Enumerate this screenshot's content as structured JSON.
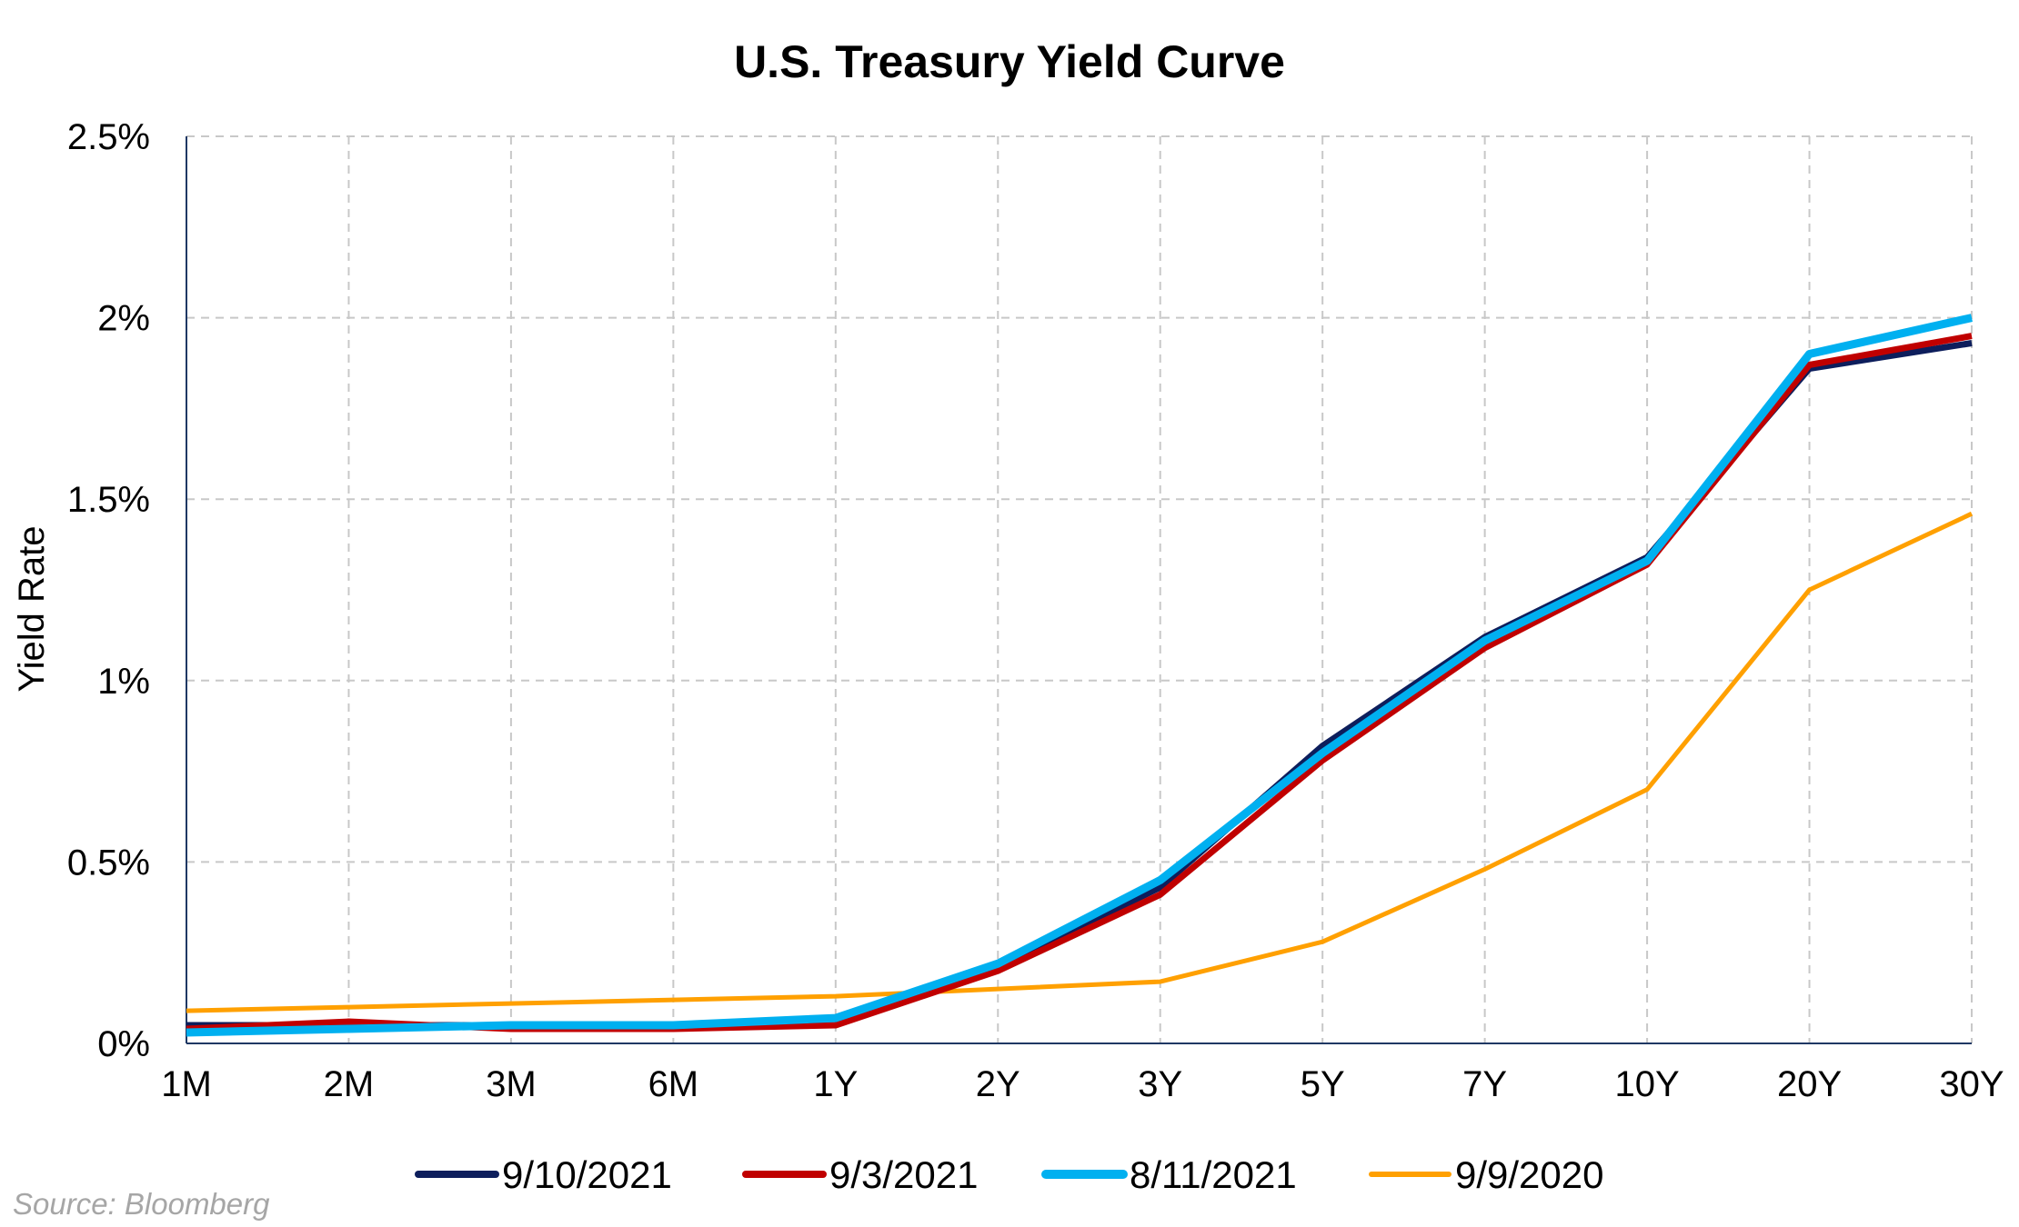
{
  "chart_data": {
    "type": "line",
    "title": "U.S. Treasury Yield Curve",
    "xlabel": "",
    "ylabel": "Yield Rate",
    "categories": [
      "1M",
      "2M",
      "3M",
      "6M",
      "1Y",
      "2Y",
      "3Y",
      "5Y",
      "7Y",
      "10Y",
      "20Y",
      "30Y"
    ],
    "ylim": [
      0,
      2.5
    ],
    "yticks": [
      0,
      0.5,
      1,
      1.5,
      2,
      2.5
    ],
    "ytick_labels": [
      "0%",
      "0.5%",
      "1%",
      "1.5%",
      "2%",
      "2.5%"
    ],
    "grid": true,
    "legend_position": "bottom",
    "series": [
      {
        "name": "9/10/2021",
        "color": "#0d1e5c",
        "values": [
          0.05,
          0.05,
          0.05,
          0.05,
          0.07,
          0.21,
          0.43,
          0.82,
          1.12,
          1.34,
          1.86,
          1.93
        ]
      },
      {
        "name": "9/3/2021",
        "color": "#c00000",
        "values": [
          0.04,
          0.06,
          0.04,
          0.04,
          0.05,
          0.2,
          0.41,
          0.78,
          1.09,
          1.32,
          1.87,
          1.95
        ]
      },
      {
        "name": "8/11/2021",
        "color": "#00b0f0",
        "values": [
          0.03,
          0.04,
          0.05,
          0.05,
          0.07,
          0.22,
          0.45,
          0.8,
          1.11,
          1.33,
          1.9,
          2.0
        ]
      },
      {
        "name": "9/9/2020",
        "color": "#ffa000",
        "values": [
          0.09,
          0.1,
          0.11,
          0.12,
          0.13,
          0.15,
          0.17,
          0.28,
          0.48,
          0.7,
          1.25,
          1.46
        ]
      }
    ]
  },
  "source": "Source: Bloomberg"
}
